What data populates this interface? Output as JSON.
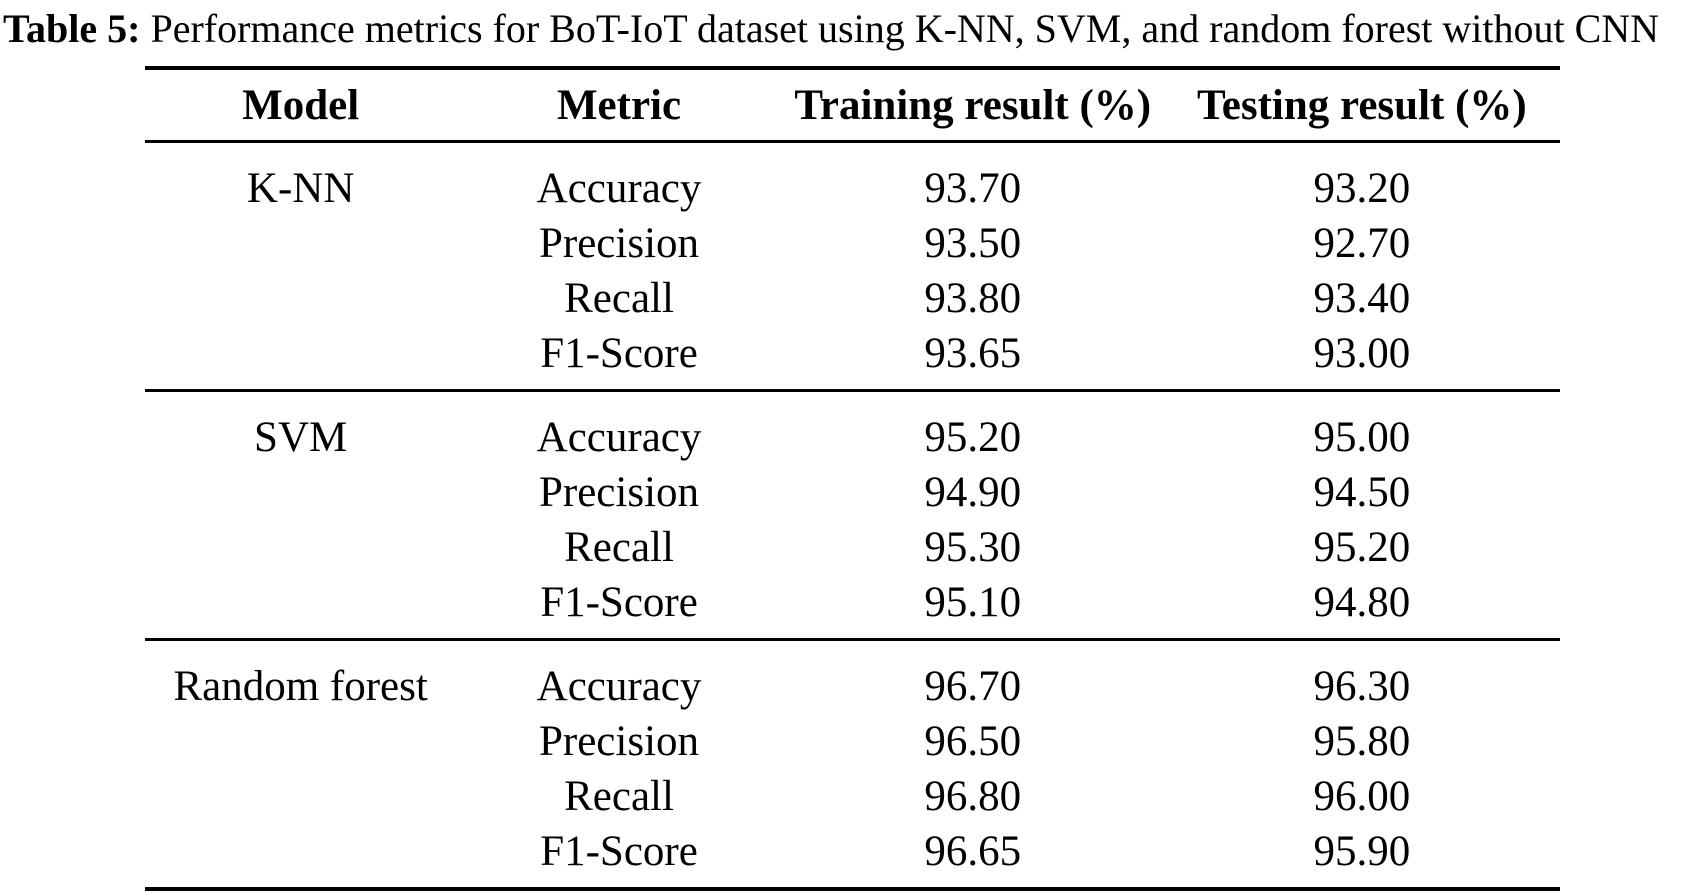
{
  "caption": {
    "label": "Table 5:",
    "text": " Performance metrics for BoT-IoT dataset using K-NN, SVM, and random forest without CNN"
  },
  "colors": {
    "background": "#ffffff",
    "text": "#000000",
    "rule": "#000000"
  },
  "table": {
    "headers": [
      "Model",
      "Metric",
      "Training result (%)",
      "Testing result (%)"
    ],
    "sections": [
      {
        "model": "K-NN",
        "rows": [
          {
            "metric": "Accuracy",
            "training": "93.70",
            "testing": "93.20"
          },
          {
            "metric": "Precision",
            "training": "93.50",
            "testing": "92.70"
          },
          {
            "metric": "Recall",
            "training": "93.80",
            "testing": "93.40"
          },
          {
            "metric": "F1-Score",
            "training": "93.65",
            "testing": "93.00"
          }
        ]
      },
      {
        "model": "SVM",
        "rows": [
          {
            "metric": "Accuracy",
            "training": "95.20",
            "testing": "95.00"
          },
          {
            "metric": "Precision",
            "training": "94.90",
            "testing": "94.50"
          },
          {
            "metric": "Recall",
            "training": "95.30",
            "testing": "95.20"
          },
          {
            "metric": "F1-Score",
            "training": "95.10",
            "testing": "94.80"
          }
        ]
      },
      {
        "model": "Random forest",
        "rows": [
          {
            "metric": "Accuracy",
            "training": "96.70",
            "testing": "96.30"
          },
          {
            "metric": "Precision",
            "training": "96.50",
            "testing": "95.80"
          },
          {
            "metric": "Recall",
            "training": "96.80",
            "testing": "96.00"
          },
          {
            "metric": "F1-Score",
            "training": "96.65",
            "testing": "95.90"
          }
        ]
      }
    ]
  }
}
